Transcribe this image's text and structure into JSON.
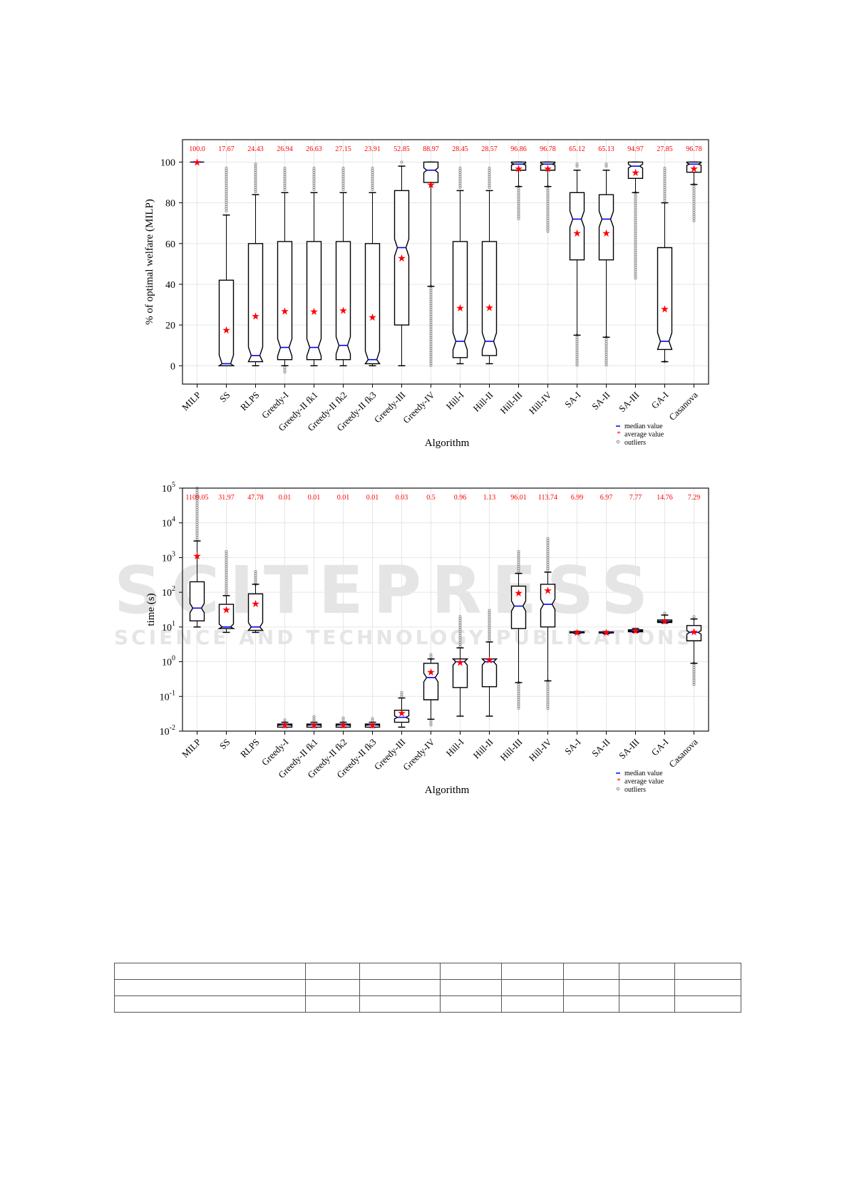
{
  "watermark": {
    "main": "SCITEPRESS",
    "sub": "SCIENCE AND TECHNOLOGY PUBLICATIONS"
  },
  "chart_data": [
    {
      "type": "box",
      "xlabel": "Algorithm",
      "ylabel": "% of optimal welfare (MILP)",
      "ylim": [
        -9,
        111
      ],
      "yticks": [
        0,
        20,
        40,
        60,
        80,
        100
      ],
      "grid": true,
      "categories": [
        "MILP",
        "SS",
        "RLPS",
        "Greedy-I",
        "Greedy-II fk1",
        "Greedy-II fk2",
        "Greedy-II fk3",
        "Greedy-III",
        "Greedy-IV",
        "Hill-I",
        "Hill-II",
        "Hill-III",
        "Hill-IV",
        "SA-I",
        "SA-II",
        "SA-III",
        "GA-I",
        "Casanova"
      ],
      "mean_labels": [
        "100.0",
        "17.67",
        "24.43",
        "26.94",
        "26.63",
        "27.15",
        "23.91",
        "52.85",
        "88.97",
        "28.45",
        "28.57",
        "96.86",
        "96.78",
        "65.12",
        "65.13",
        "94.97",
        "27.85",
        "96.78"
      ],
      "means": [
        100,
        17.67,
        24.43,
        26.94,
        26.63,
        27.15,
        23.91,
        52.85,
        88.97,
        28.45,
        28.57,
        96.86,
        96.78,
        65.12,
        65.13,
        94.97,
        27.85,
        96.78
      ],
      "boxes": [
        [
          100,
          100,
          100,
          100,
          100
        ],
        [
          0,
          0,
          1,
          42,
          74
        ],
        [
          0,
          2,
          5,
          60,
          84
        ],
        [
          0,
          3,
          9,
          61,
          85
        ],
        [
          0,
          3,
          9,
          61,
          85
        ],
        [
          0,
          3,
          10,
          61,
          85
        ],
        [
          0,
          1,
          3,
          60,
          85
        ],
        [
          0,
          20,
          58,
          86,
          98
        ],
        [
          39,
          90,
          96,
          100,
          100
        ],
        [
          1,
          4,
          12,
          61,
          86
        ],
        [
          1,
          5,
          12,
          61,
          86
        ],
        [
          88,
          96,
          99,
          100,
          100
        ],
        [
          88,
          96,
          99,
          100,
          100
        ],
        [
          15,
          52,
          72,
          85,
          96
        ],
        [
          14,
          52,
          72,
          84,
          96
        ],
        [
          85,
          92,
          98,
          100,
          100
        ],
        [
          2,
          8,
          12,
          58,
          80
        ],
        [
          89,
          95,
          99,
          100,
          100
        ]
      ],
      "outliers": [
        [],
        [
          [
            75,
            97
          ]
        ],
        [
          [
            85,
            99
          ]
        ],
        [
          [
            -4,
            -1
          ],
          [
            86,
            97
          ]
        ],
        [
          [
            86,
            97
          ]
        ],
        [
          [
            86,
            97
          ]
        ],
        [
          [
            86,
            97
          ]
        ],
        [
          [
            99,
            100
          ]
        ],
        [
          [
            0,
            39
          ]
        ],
        [
          [
            87,
            97
          ]
        ],
        [
          [
            87,
            97
          ]
        ],
        [
          [
            72,
            88
          ]
        ],
        [
          [
            65,
            88
          ]
        ],
        [
          [
            0,
            15
          ],
          [
            97,
            99
          ]
        ],
        [
          [
            0,
            14
          ],
          [
            97,
            99
          ]
        ],
        [
          [
            43,
            85
          ]
        ],
        [
          [
            1,
            2
          ],
          [
            80,
            97
          ]
        ],
        [
          [
            71,
            89
          ]
        ]
      ],
      "legend": {
        "position": "bottom-right",
        "items": [
          "median value",
          "average value",
          "outliers"
        ]
      },
      "colors": {
        "median": "#0000ff",
        "mean": "#ff0000",
        "outlier": "#888888"
      }
    },
    {
      "type": "box",
      "xlabel": "Algorithm",
      "ylabel": "time (s)",
      "yscale": "log",
      "ylim": [
        0.01,
        100000
      ],
      "yticks": [
        "10^-2",
        "10^-1",
        "10^0",
        "10^1",
        "10^2",
        "10^3",
        "10^4",
        "10^5"
      ],
      "grid": true,
      "categories": [
        "MILP",
        "SS",
        "RLPS",
        "Greedy-I",
        "Greedy-II fk1",
        "Greedy-II fk2",
        "Greedy-II fk3",
        "Greedy-III",
        "Greedy-IV",
        "Hill-I",
        "Hill-II",
        "Hill-III",
        "Hill-IV",
        "SA-I",
        "SA-II",
        "SA-III",
        "GA-I",
        "Casanova"
      ],
      "mean_labels": [
        "1109.05",
        "31.97",
        "47.78",
        "0.01",
        "0.01",
        "0.01",
        "0.01",
        "0.03",
        "0.5",
        "0.96",
        "1.13",
        "96.01",
        "113.74",
        "6.99",
        "6.97",
        "7.77",
        "14.76",
        "7.29"
      ],
      "means": [
        1109.05,
        31.97,
        47.78,
        0.015,
        0.015,
        0.015,
        0.015,
        0.033,
        0.5,
        0.96,
        1.13,
        96.01,
        113.74,
        6.99,
        6.97,
        7.77,
        14.76,
        7.29
      ],
      "boxes": [
        [
          10,
          15,
          35,
          200,
          3000
        ],
        [
          7,
          9,
          10,
          45,
          80
        ],
        [
          7,
          8,
          10,
          90,
          170
        ],
        [
          0.013,
          0.013,
          0.015,
          0.016,
          0.018
        ],
        [
          0.013,
          0.013,
          0.015,
          0.016,
          0.018
        ],
        [
          0.013,
          0.013,
          0.015,
          0.016,
          0.018
        ],
        [
          0.013,
          0.013,
          0.015,
          0.016,
          0.018
        ],
        [
          0.013,
          0.018,
          0.025,
          0.04,
          0.09
        ],
        [
          0.022,
          0.08,
          0.35,
          0.9,
          1.2
        ],
        [
          0.027,
          0.18,
          1,
          1.2,
          2.5
        ],
        [
          0.027,
          0.19,
          1,
          1.2,
          3.7
        ],
        [
          0.25,
          9,
          40,
          150,
          350
        ],
        [
          0.28,
          10,
          45,
          170,
          380
        ],
        [
          6.5,
          6.8,
          7,
          7.3,
          7.5
        ],
        [
          6.4,
          6.7,
          6.9,
          7.2,
          7.4
        ],
        [
          7,
          7.3,
          7.8,
          8.3,
          9
        ],
        [
          13,
          13.5,
          14.5,
          16,
          22
        ],
        [
          0.9,
          4,
          7,
          11,
          17
        ]
      ],
      "outliers": [
        [
          [
            3000,
            100000
          ]
        ],
        [
          [
            80,
            1500
          ]
        ],
        [
          [
            170,
            400
          ]
        ],
        [
          [
            0.018,
            0.021
          ]
        ],
        [
          [
            0.018,
            0.026
          ]
        ],
        [
          [
            0.018,
            0.024
          ]
        ],
        [
          [
            0.018,
            0.023
          ]
        ],
        [
          [
            0.09,
            0.13
          ]
        ],
        [
          [
            0.015,
            0.02
          ],
          [
            1.2,
            1.6
          ]
        ],
        [
          [
            2.5,
            20
          ]
        ],
        [
          [
            3.7,
            30
          ]
        ],
        [
          [
            0.04,
            0.25
          ],
          [
            350,
            1500
          ]
        ],
        [
          [
            0.04,
            0.28
          ],
          [
            380,
            3500
          ]
        ],
        [],
        [],
        [],
        [
          [
            22,
            25
          ]
        ],
        [
          [
            0.2,
            0.9
          ],
          [
            17,
            20
          ]
        ]
      ],
      "legend": {
        "position": "bottom-right",
        "items": [
          "median value",
          "average value",
          "outliers"
        ]
      },
      "colors": {
        "median": "#0000ff",
        "mean": "#ff0000",
        "outlier": "#888888"
      }
    }
  ]
}
